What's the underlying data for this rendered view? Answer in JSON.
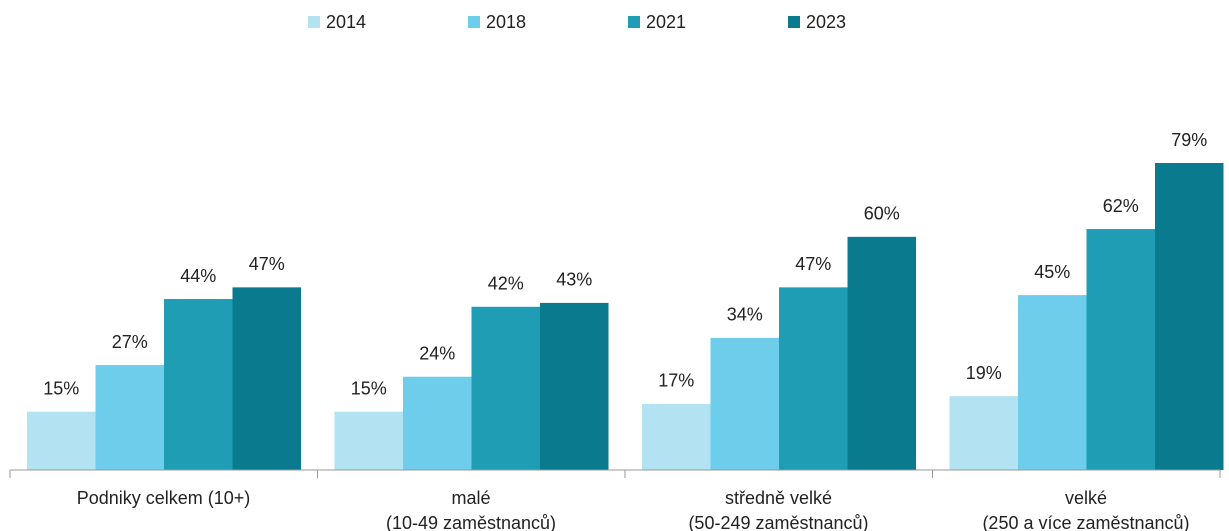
{
  "chart_data": {
    "type": "bar",
    "categories": [
      "Podniky celkem (10+)",
      "malé\n(10-49 zaměstnanců)",
      "středně velké\n(50-249 zaměstnanců)",
      "velké\n(250 a více zaměstnanců)"
    ],
    "series": [
      {
        "name": "2014",
        "color": "#b3e2f2",
        "values": [
          15,
          15,
          17,
          19
        ],
        "value_labels": [
          "15%",
          "15%",
          "17%",
          "19%"
        ]
      },
      {
        "name": "2018",
        "color": "#6dcdeb",
        "values": [
          27,
          24,
          34,
          45
        ],
        "value_labels": [
          "27%",
          "24%",
          "34%",
          "45%"
        ]
      },
      {
        "name": "2021",
        "color": "#1f9db5",
        "values": [
          44,
          42,
          47,
          62
        ],
        "value_labels": [
          "44%",
          "42%",
          "47%",
          "62%"
        ]
      },
      {
        "name": "2023",
        "color": "#0a7b8e",
        "values": [
          47,
          43,
          60,
          79
        ],
        "value_labels": [
          "47%",
          "43%",
          "60%",
          "79%"
        ]
      }
    ],
    "legend": "top"
  }
}
